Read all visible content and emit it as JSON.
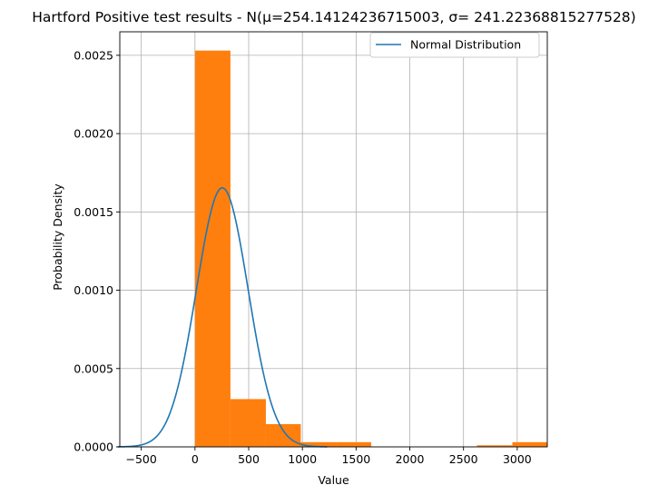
{
  "chart_data": {
    "type": "histogram",
    "title": "Hartford Positive test results - N(μ=254.14124236715003, σ= 241.22368815277528)",
    "xlabel": "Value",
    "ylabel": "Probability Density",
    "xlim": [
      -700,
      3280
    ],
    "ylim": [
      0,
      0.00265
    ],
    "grid": true,
    "legend_position": "top-right",
    "x_ticks": [
      -500,
      0,
      500,
      1000,
      1500,
      2000,
      2500,
      3000
    ],
    "x_tick_labels": [
      "−500",
      "0",
      "500",
      "1000",
      "1500",
      "2000",
      "2500",
      "3000"
    ],
    "y_ticks": [
      0,
      0.0005,
      0.001,
      0.0015,
      0.002,
      0.0025
    ],
    "y_tick_labels": [
      "0.0000",
      "0.0005",
      "0.0010",
      "0.0015",
      "0.0020",
      "0.0025"
    ],
    "histogram": {
      "color": "#ff7f0e",
      "bins": [
        {
          "x0": 0,
          "x1": 330,
          "density": 0.00253
        },
        {
          "x0": 330,
          "x1": 660,
          "density": 0.000305
        },
        {
          "x0": 660,
          "x1": 985,
          "density": 0.000145
        },
        {
          "x0": 985,
          "x1": 1315,
          "density": 3e-05
        },
        {
          "x0": 1315,
          "x1": 1640,
          "density": 3e-05
        },
        {
          "x0": 1640,
          "x1": 1970,
          "density": 0.0
        },
        {
          "x0": 1970,
          "x1": 2300,
          "density": 0.0
        },
        {
          "x0": 2300,
          "x1": 2625,
          "density": 0.0
        },
        {
          "x0": 2625,
          "x1": 2955,
          "density": 1e-05
        },
        {
          "x0": 2955,
          "x1": 3280,
          "density": 3e-05
        }
      ]
    },
    "series": [
      {
        "name": "Normal Distribution",
        "type": "line",
        "color": "#1f77b4",
        "mu": 254.14124236715003,
        "sigma": 241.22368815277528,
        "x_range": [
          -720,
          1230
        ]
      }
    ]
  }
}
